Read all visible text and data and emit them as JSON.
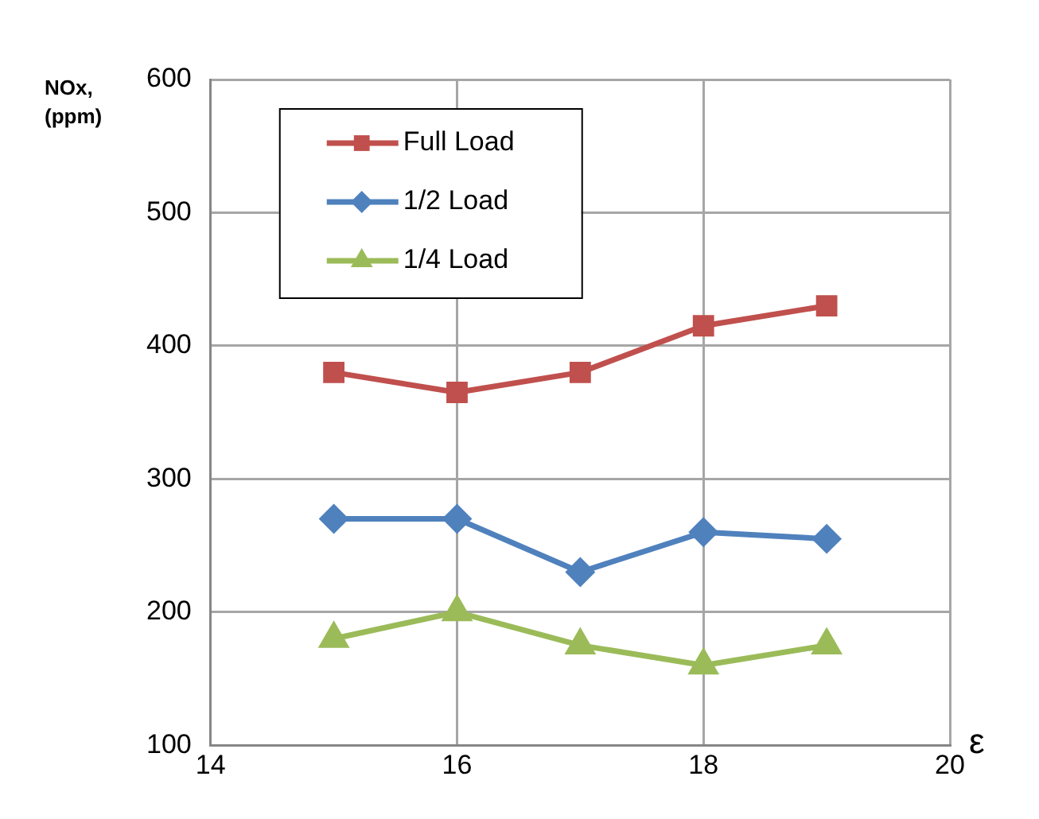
{
  "chart_data": {
    "type": "line",
    "xlabel": "ε",
    "ylabel": "NOx, (ppm)",
    "x": [
      15,
      16,
      17,
      18,
      19
    ],
    "series": [
      {
        "name": "Full Load",
        "color": "#c0504d",
        "marker": "square",
        "values": [
          380,
          365,
          380,
          415,
          430
        ]
      },
      {
        "name": "1/2 Load",
        "color": "#4f81bd",
        "marker": "diamond",
        "values": [
          270,
          270,
          230,
          260,
          255
        ]
      },
      {
        "name": "1/4 Load",
        "color": "#9bbb59",
        "marker": "triangle",
        "values": [
          180,
          200,
          175,
          160,
          175
        ]
      }
    ],
    "xlim": [
      14,
      20
    ],
    "xticks": [
      14,
      16,
      18,
      20
    ],
    "ylim": [
      100,
      600
    ],
    "yticks": [
      100,
      200,
      300,
      400,
      500,
      600
    ],
    "grid": true,
    "legend": "top left",
    "line_style": "solid"
  }
}
